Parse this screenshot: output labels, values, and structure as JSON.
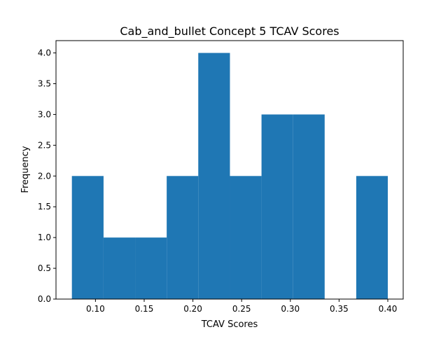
{
  "chart_data": {
    "type": "bar",
    "title": "Cab_and_bullet Concept 5 TCAV Scores",
    "xlabel": "TCAV Scores",
    "ylabel": "Frequency",
    "xlim": [
      0.0595,
      0.4158
    ],
    "ylim": [
      0,
      4.2
    ],
    "xticks": [
      "0.10",
      "0.15",
      "0.20",
      "0.25",
      "0.30",
      "0.35",
      "0.40"
    ],
    "yticks": [
      "0.0",
      "0.5",
      "1.0",
      "1.5",
      "2.0",
      "2.5",
      "3.0",
      "3.5",
      "4.0"
    ],
    "bins": [
      {
        "x0": 0.0758,
        "x1": 0.1083,
        "count": 2
      },
      {
        "x0": 0.1083,
        "x1": 0.1407,
        "count": 1
      },
      {
        "x0": 0.1407,
        "x1": 0.1731,
        "count": 1
      },
      {
        "x0": 0.1731,
        "x1": 0.2055,
        "count": 2
      },
      {
        "x0": 0.2055,
        "x1": 0.238,
        "count": 4
      },
      {
        "x0": 0.238,
        "x1": 0.2704,
        "count": 2
      },
      {
        "x0": 0.2704,
        "x1": 0.3028,
        "count": 3
      },
      {
        "x0": 0.3028,
        "x1": 0.3352,
        "count": 3
      },
      {
        "x0": 0.3352,
        "x1": 0.3676,
        "count": 0
      },
      {
        "x0": 0.3676,
        "x1": 0.4,
        "count": 2
      }
    ],
    "bar_color": "#1f77b4",
    "grid": false
  }
}
